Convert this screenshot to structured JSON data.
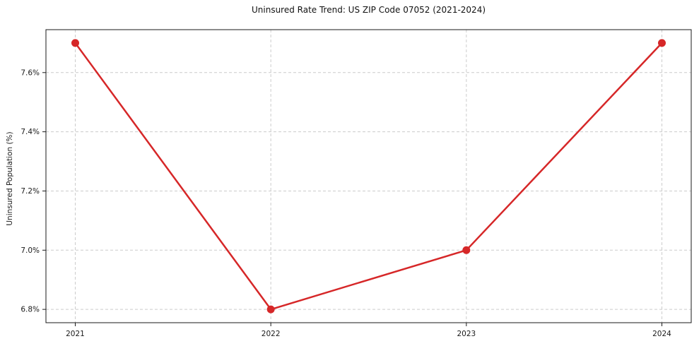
{
  "chart_data": {
    "type": "line",
    "title": "Uninsured Rate Trend: US ZIP Code 07052 (2021-2024)",
    "xlabel": "",
    "ylabel": "Uninsured Population (%)",
    "categories": [
      "2021",
      "2022",
      "2023",
      "2024"
    ],
    "x": [
      2021,
      2022,
      2023,
      2024
    ],
    "x_ticks": [
      2021,
      2022,
      2023,
      2024
    ],
    "series": [
      {
        "name": "Uninsured Population (%)",
        "values": [
          7.7,
          6.8,
          7.0,
          7.7
        ]
      }
    ],
    "y_ticks": [
      6.8,
      7.0,
      7.2,
      7.4,
      7.6
    ],
    "y_tick_labels": [
      "6.8%",
      "7.0%",
      "7.2%",
      "7.4%",
      "7.6%"
    ],
    "xlim": [
      2020.85,
      2024.15
    ],
    "ylim": [
      6.755,
      7.745
    ],
    "grid": true,
    "grid_style": "dashed",
    "legend": false,
    "marker": "circle",
    "line_color": "#d62728",
    "grid_color": "#cccccc",
    "frame_color": "#1a1a1a",
    "text_color": "#1a1a1a",
    "background_color": "#ffffff"
  }
}
